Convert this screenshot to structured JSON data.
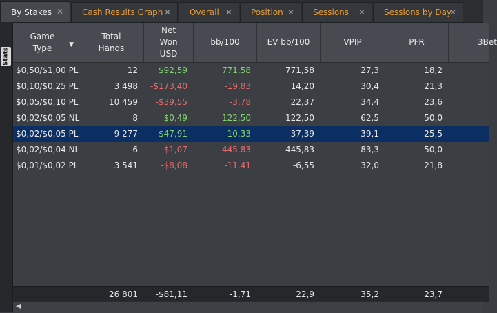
{
  "tabs": [
    {
      "label": "By Stakes",
      "active": true
    },
    {
      "label": "Cash Results Graph"
    },
    {
      "label": "Overall"
    },
    {
      "label": "Position"
    },
    {
      "label": "Sessions"
    },
    {
      "label": "Sessions by Day"
    }
  ],
  "side_tab": {
    "label": "Stats"
  },
  "columns": [
    {
      "label": "Game\nType"
    },
    {
      "label": "Total\nHands"
    },
    {
      "label": "Net\nWon\nUSD"
    },
    {
      "label": "bb/100"
    },
    {
      "label": "EV bb/100"
    },
    {
      "label": "VPIP"
    },
    {
      "label": "PFR"
    },
    {
      "label": "3Bet"
    }
  ],
  "rows": [
    {
      "game": "$0,50/$1,00 PL",
      "hands": "12",
      "net": "$92,59",
      "bb": "771,58",
      "ev": "771,58",
      "vpip": "27,3",
      "pfr": "18,2"
    },
    {
      "game": "$0,10/$0,25 PL",
      "hands": "3 498",
      "net": "-$173,40",
      "bb": "-19,83",
      "ev": "14,20",
      "vpip": "30,4",
      "pfr": "21,3"
    },
    {
      "game": "$0,05/$0,10 PL",
      "hands": "10 459",
      "net": "-$39,55",
      "bb": "-3,78",
      "ev": "22,37",
      "vpip": "34,4",
      "pfr": "23,6"
    },
    {
      "game": "$0,02/$0,05 NL",
      "hands": "8",
      "net": "$0,49",
      "bb": "122,50",
      "ev": "122,50",
      "vpip": "62,5",
      "pfr": "50,0"
    },
    {
      "game": "$0,02/$0,05 PL",
      "hands": "9 277",
      "net": "$47,91",
      "bb": "10,33",
      "ev": "37,39",
      "vpip": "39,1",
      "pfr": "25,5",
      "selected": true
    },
    {
      "game": "$0,02/$0,04 NL",
      "hands": "6",
      "net": "-$1,07",
      "bb": "-445,83",
      "ev": "-445,83",
      "vpip": "83,3",
      "pfr": "50,0"
    },
    {
      "game": "$0,01/$0,02 PL",
      "hands": "3 541",
      "net": "-$8,08",
      "bb": "-11,41",
      "ev": "-6,55",
      "vpip": "32,0",
      "pfr": "21,8"
    }
  ],
  "totals": {
    "hands": "26 801",
    "net": "-$81,11",
    "bb": "-1,71",
    "ev": "22,9",
    "vpip": "35,2",
    "pfr": "23,7"
  },
  "colors": {
    "positive": "#82d46e",
    "negative": "#e86b6b",
    "tab_text": "#e89a32",
    "selection": "#0b2f63"
  }
}
